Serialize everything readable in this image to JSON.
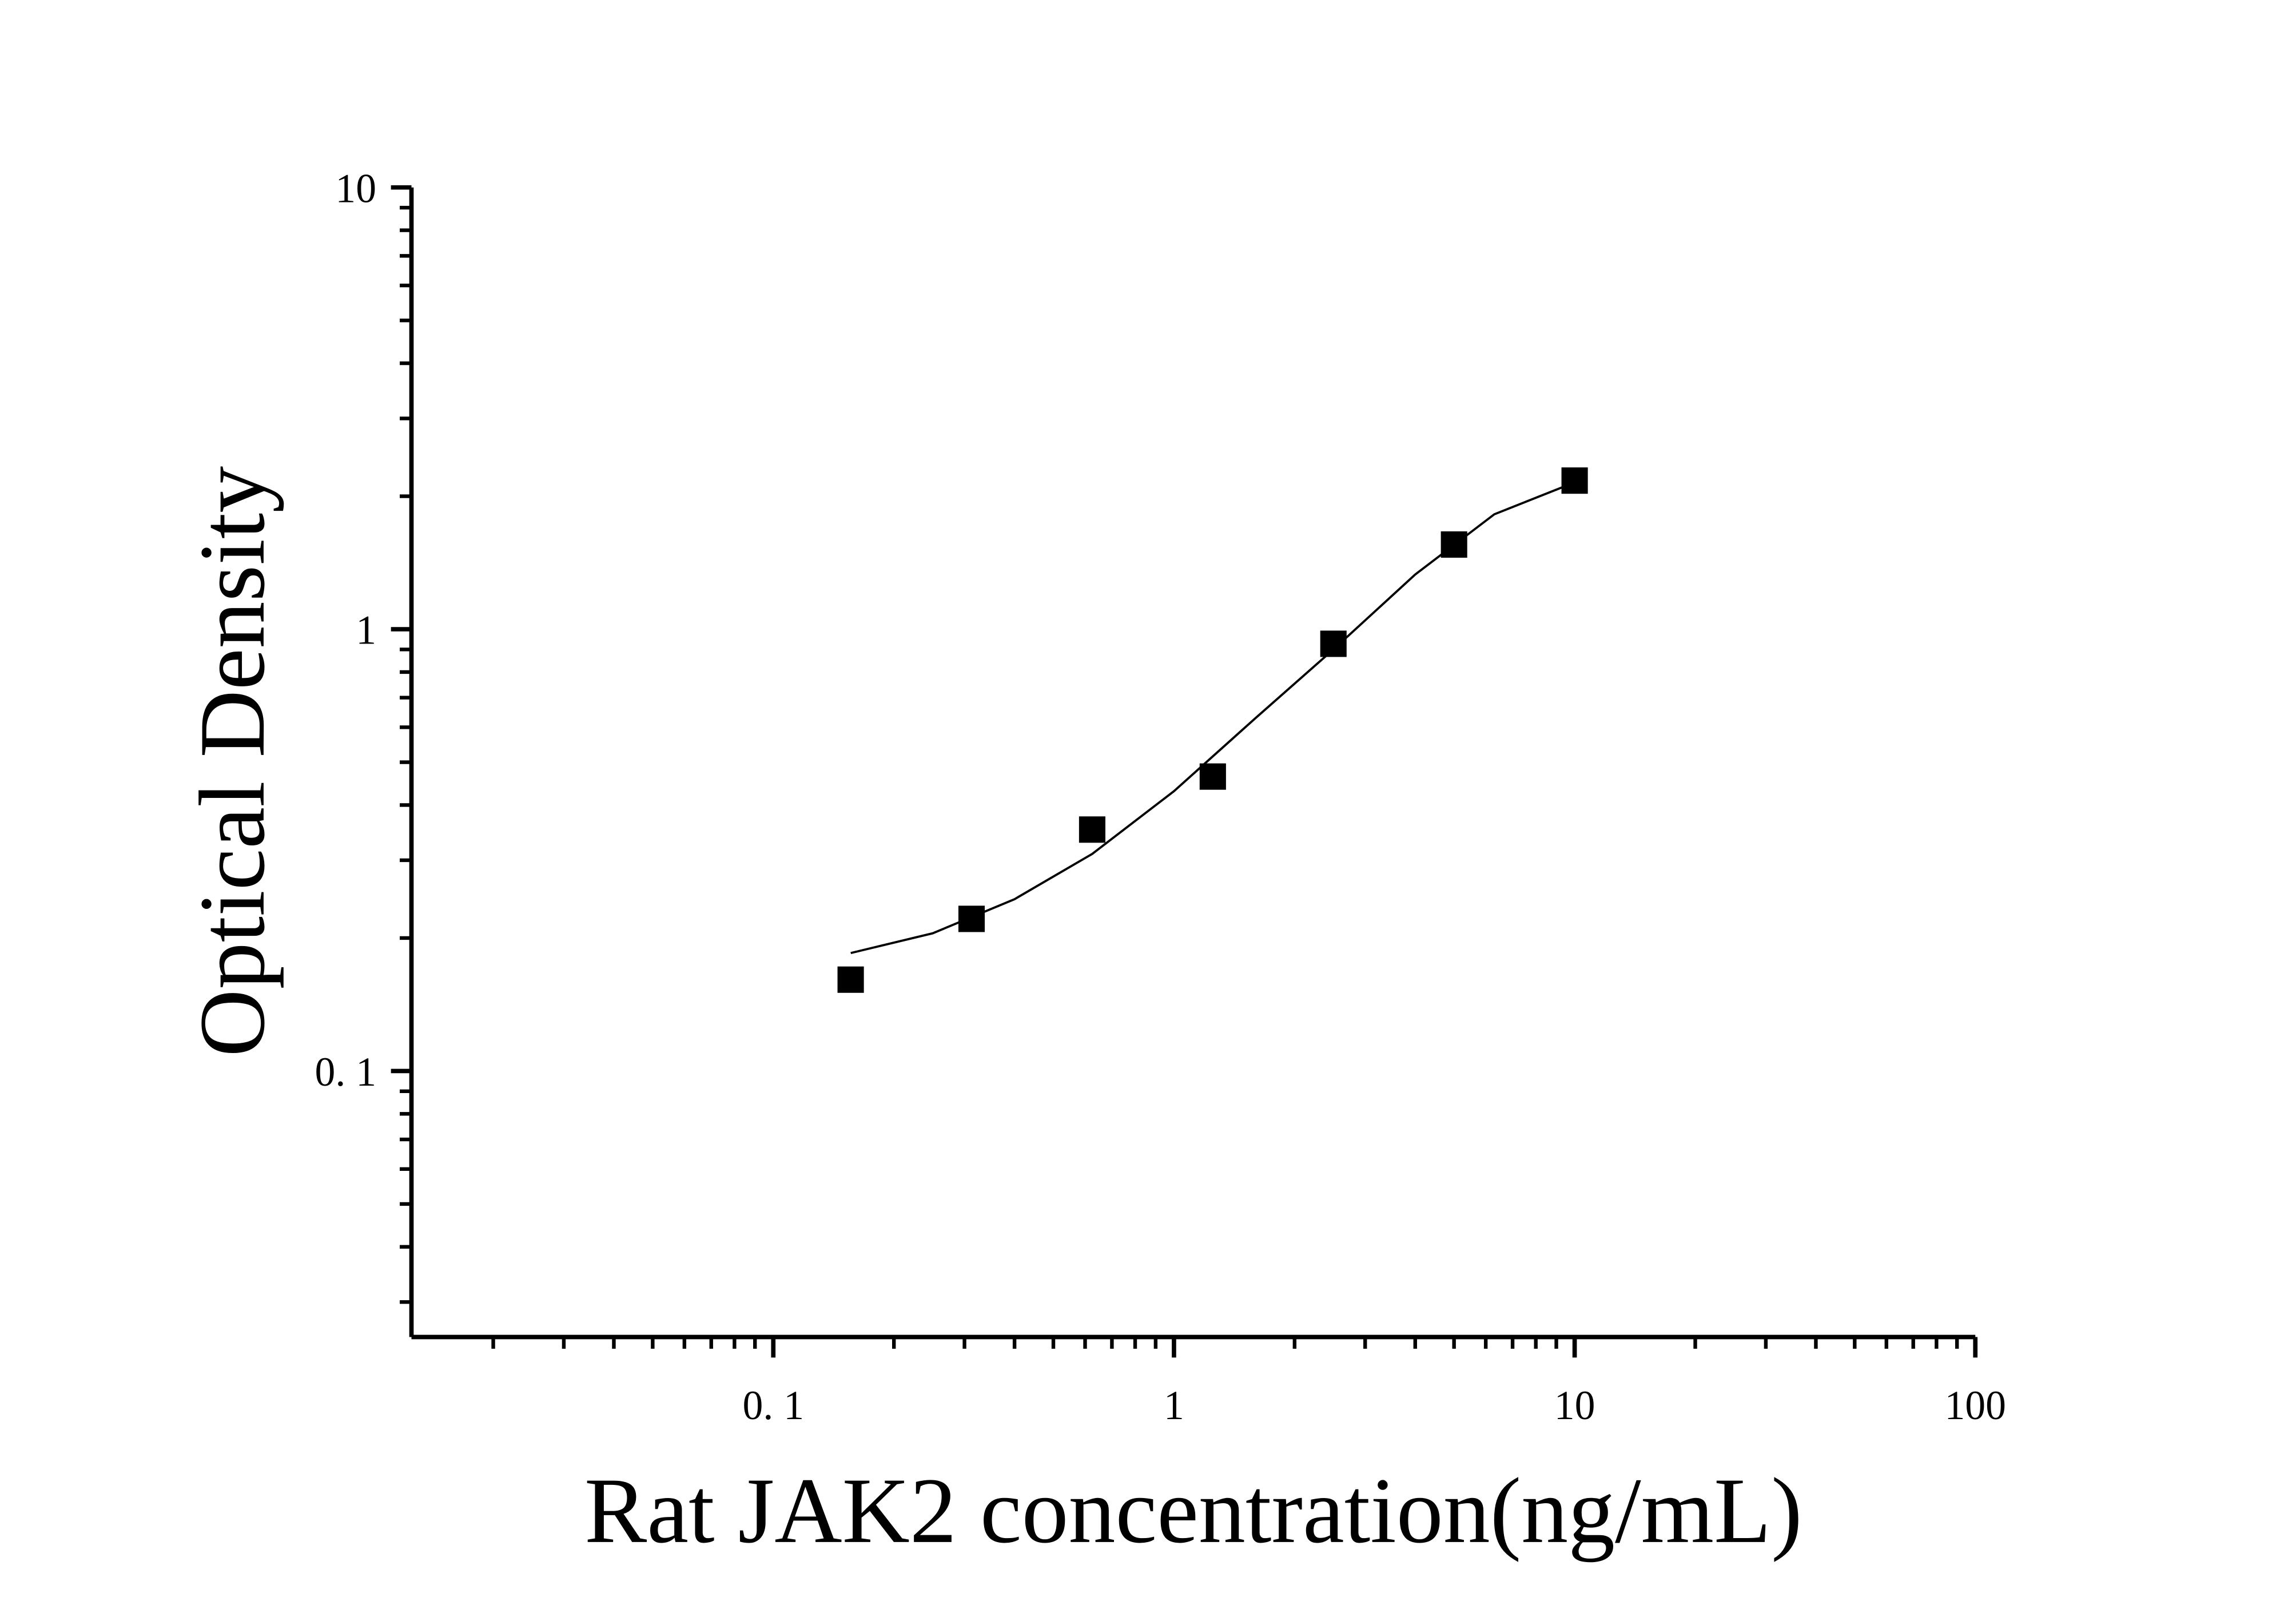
{
  "chart_data": {
    "type": "scatter",
    "x_label": "Rat JAK2 concentration(ng/mL)",
    "y_label": "Optical Density",
    "x_scale": "log",
    "y_scale": "log",
    "xlim": [
      0.0125,
      100
    ],
    "ylim": [
      0.025,
      10
    ],
    "xticks": [
      {
        "value": 0.1,
        "label": "0. 1"
      },
      1,
      10,
      100
    ],
    "yticks": [
      {
        "value": 0.1,
        "label": "0. 1"
      },
      1,
      10
    ],
    "xticks_minor": [
      0.02,
      0.03,
      0.04,
      0.05,
      0.06,
      0.07,
      0.08,
      0.09,
      0.2,
      0.3,
      0.4,
      0.5,
      0.6,
      0.7,
      0.8,
      0.9,
      2,
      3,
      4,
      5,
      6,
      7,
      8,
      9,
      20,
      30,
      40,
      50,
      60,
      70,
      80,
      90
    ],
    "yticks_minor": [
      0.03,
      0.04,
      0.05,
      0.06,
      0.07,
      0.08,
      0.09,
      0.2,
      0.3,
      0.4,
      0.5,
      0.6,
      0.7,
      0.8,
      0.9,
      2,
      3,
      4,
      5,
      6,
      7,
      8,
      9
    ],
    "grid": false,
    "series": [
      {
        "name": "standard",
        "kind": "points",
        "color": "#000000",
        "x": [
          0.156,
          0.3125,
          0.625,
          1.25,
          2.5,
          5,
          10
        ],
        "values": [
          0.161,
          0.221,
          0.352,
          0.464,
          0.927,
          1.555,
          2.17
        ]
      },
      {
        "name": "fit",
        "kind": "line",
        "color": "#000000",
        "x": [
          0.156,
          0.25,
          0.4,
          0.625,
          1,
          1.6,
          2.5,
          4,
          6.3,
          10
        ],
        "values": [
          0.185,
          0.205,
          0.245,
          0.31,
          0.43,
          0.63,
          0.9,
          1.33,
          1.82,
          2.15
        ]
      }
    ]
  }
}
